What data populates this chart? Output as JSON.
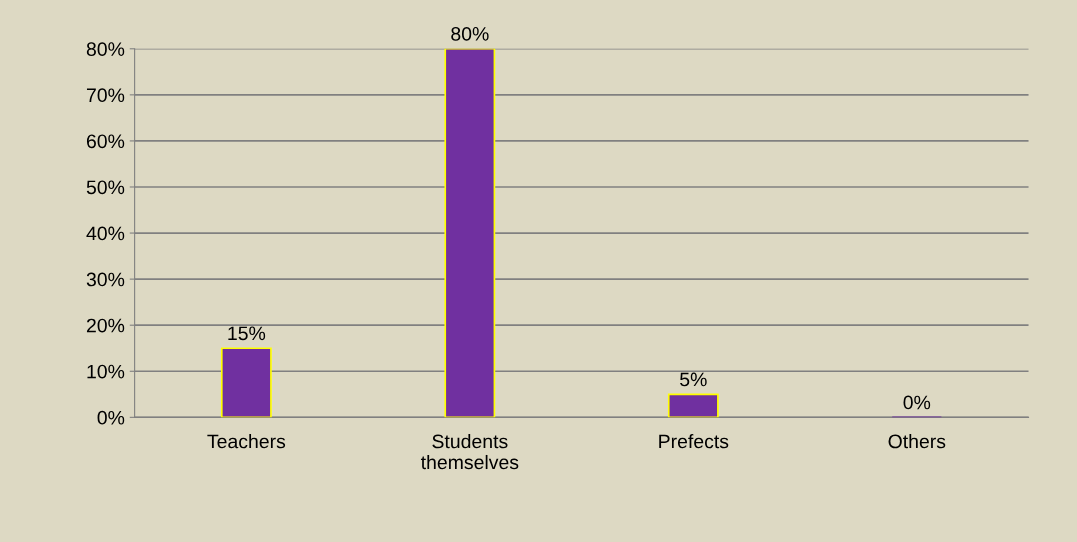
{
  "chart_data": {
    "type": "bar",
    "categories": [
      "Teachers",
      "Students\nthemselves",
      "Prefects",
      "Others"
    ],
    "values": [
      15,
      80,
      5,
      0
    ],
    "color": "#7030a0",
    "value_labels": [
      "15%",
      "80%",
      "5%",
      "0%"
    ],
    "ylim": [
      0,
      80
    ],
    "yticks": [
      {
        "value": 0,
        "label": "0%"
      },
      {
        "value": 10,
        "label": "10%"
      },
      {
        "value": 20,
        "label": "20%"
      },
      {
        "value": 30,
        "label": "30%"
      },
      {
        "value": 40,
        "label": "40%"
      },
      {
        "value": 50,
        "label": "50%"
      },
      {
        "value": 60,
        "label": "60%"
      },
      {
        "value": 70,
        "label": "70%"
      },
      {
        "value": 80,
        "label": "80%"
      }
    ],
    "grid": "y"
  }
}
